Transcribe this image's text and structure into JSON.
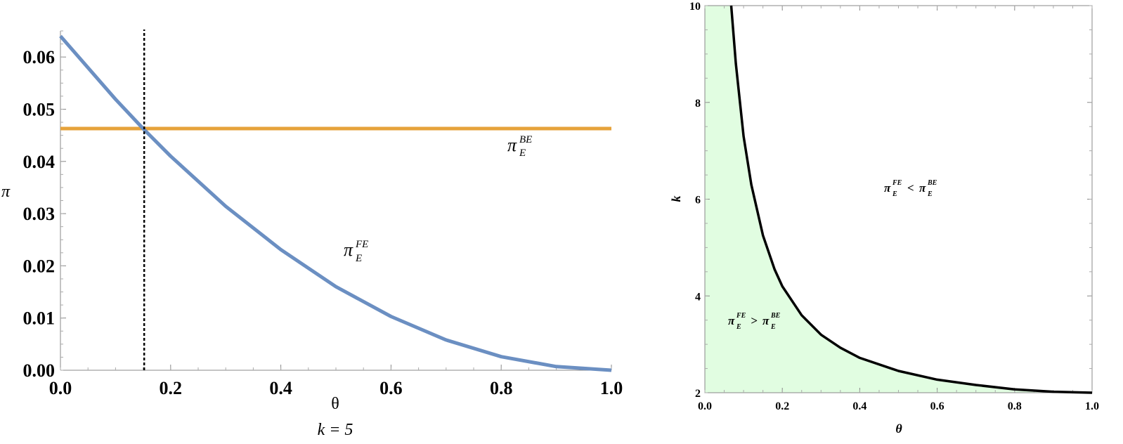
{
  "chart_data": [
    {
      "type": "line",
      "xlabel": "θ",
      "ylabel": "π",
      "caption": "k = 5",
      "xlim": [
        0,
        1
      ],
      "ylim": [
        0,
        0.065
      ],
      "xticks": [
        "0.0",
        "0.2",
        "0.4",
        "0.6",
        "0.8",
        "1.0"
      ],
      "yticks": [
        "0.00",
        "0.01",
        "0.02",
        "0.03",
        "0.04",
        "0.05",
        "0.06"
      ],
      "series": [
        {
          "name": "π_E^FE",
          "label_main": "π",
          "label_sup": "FE",
          "label_sub": "E",
          "color": "#6b8fc2",
          "x": [
            0,
            0.1,
            0.15,
            0.2,
            0.3,
            0.4,
            0.5,
            0.6,
            0.7,
            0.8,
            0.9,
            1.0
          ],
          "y": [
            0.064,
            0.0519,
            0.0463,
            0.041,
            0.0314,
            0.0231,
            0.016,
            0.0103,
            0.0058,
            0.0026,
            0.0007,
            0.0
          ]
        },
        {
          "name": "π_E^BE",
          "label_main": "π",
          "label_sup": "BE",
          "label_sub": "E",
          "color": "#e6a23a",
          "x": [
            0,
            1
          ],
          "y": [
            0.0463,
            0.0463
          ]
        }
      ],
      "vline": {
        "x": 0.152,
        "style": "dashed",
        "color": "#000000"
      }
    },
    {
      "type": "area",
      "xlabel": "θ",
      "ylabel": "k",
      "xlim": [
        0,
        1
      ],
      "ylim": [
        2,
        10
      ],
      "xticks": [
        "0.0",
        "0.2",
        "0.4",
        "0.6",
        "0.8",
        "1.0"
      ],
      "yticks": [
        "2",
        "4",
        "6",
        "8",
        "10"
      ],
      "fill_color": "#e1fde1",
      "boundary": {
        "color": "#000000",
        "x": [
          0.068,
          0.08,
          0.1,
          0.12,
          0.15,
          0.18,
          0.2,
          0.25,
          0.3,
          0.35,
          0.4,
          0.5,
          0.6,
          0.7,
          0.8,
          0.9,
          1.0
        ],
        "y": [
          10.0,
          8.8,
          7.3,
          6.3,
          5.25,
          4.55,
          4.2,
          3.6,
          3.2,
          2.93,
          2.72,
          2.45,
          2.27,
          2.16,
          2.07,
          2.02,
          2.0
        ]
      },
      "regions": [
        {
          "main_l": "π",
          "sup_l": "FE",
          "sub_l": "E",
          "op": ">",
          "main_r": "π",
          "sup_r": "BE",
          "sub_r": "E",
          "x": 0.125,
          "y": 3.5
        },
        {
          "main_l": "π",
          "sup_l": "FE",
          "sub_l": "E",
          "op": "<",
          "main_r": "π",
          "sup_r": "BE",
          "sub_r": "E",
          "x": 0.54,
          "y": 6.25
        }
      ]
    }
  ]
}
